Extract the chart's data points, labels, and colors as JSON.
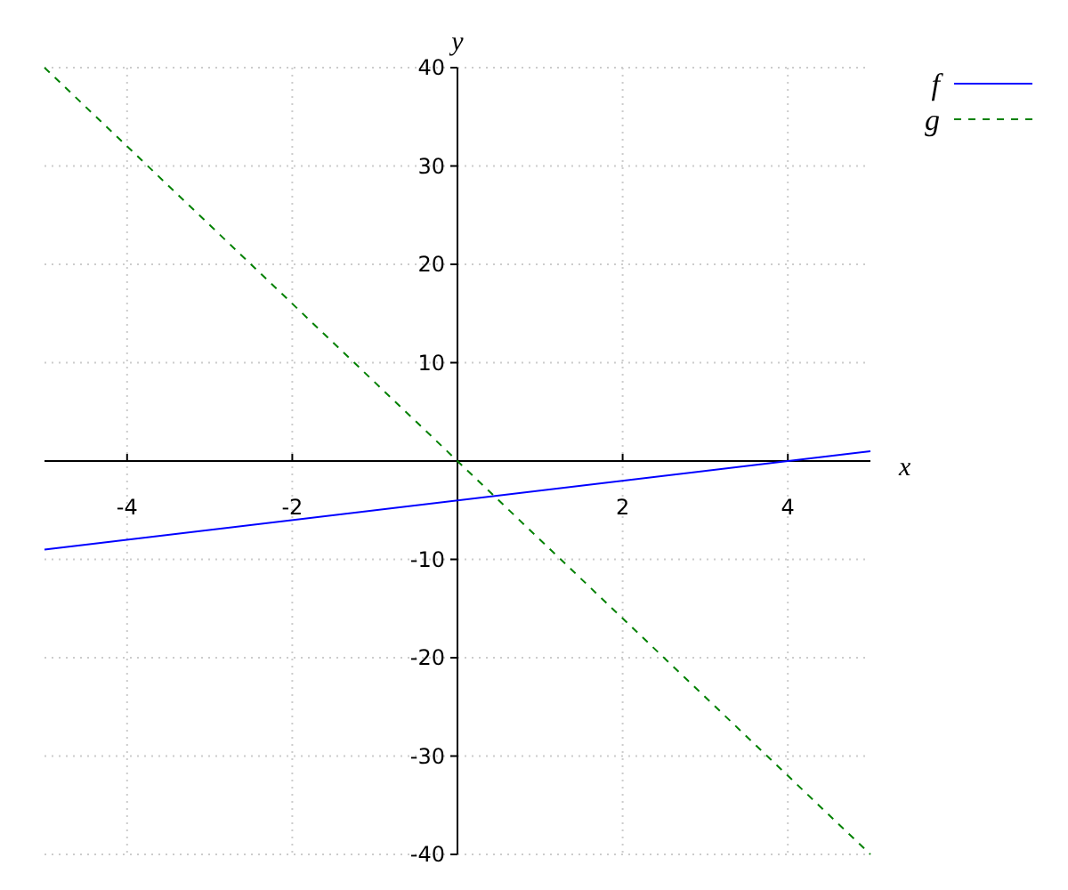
{
  "chart_data": {
    "type": "line",
    "xlabel": "x",
    "ylabel": "y",
    "x": [
      -5,
      5
    ],
    "series": [
      {
        "name": "f",
        "color": "#0000ff",
        "values": [
          -9,
          1
        ],
        "line_style": "solid"
      },
      {
        "name": "g",
        "color": "#008000",
        "values": [
          40,
          -40
        ],
        "line_style": "dashed"
      }
    ],
    "xlim": [
      -5,
      5
    ],
    "ylim": [
      -40,
      40
    ],
    "xticks": [
      -4,
      -2,
      2,
      4
    ],
    "yticks": [
      -40,
      -30,
      -20,
      -10,
      10,
      20,
      30,
      40
    ],
    "grid": true,
    "legend": "top right",
    "marker": "none"
  }
}
